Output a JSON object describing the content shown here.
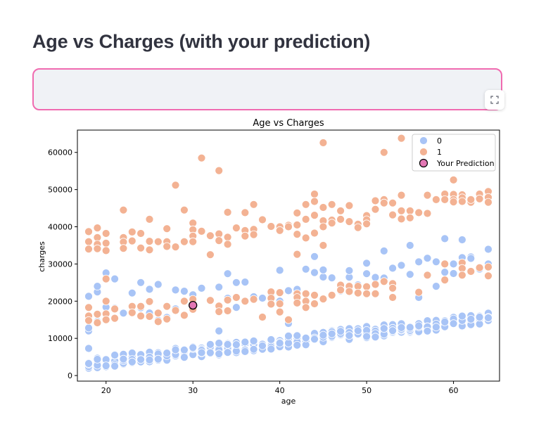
{
  "page": {
    "title": "Age vs Charges (with your prediction)"
  },
  "toolbar": {
    "fullscreen_icon": "fullscreen-icon"
  },
  "colors": {
    "smoker_0": "#a8c4f6",
    "smoker_1": "#f3b293",
    "prediction": "#e377b4",
    "frame_border": "#f06bb0"
  },
  "chart_data": {
    "type": "scatter",
    "title": "Age vs Charges",
    "xlabel": "age",
    "ylabel": "charges",
    "xlim": [
      16.7,
      65.3
    ],
    "ylim": [
      -1500,
      66000
    ],
    "xticks": [
      20,
      30,
      40,
      50,
      60
    ],
    "yticks": [
      0,
      10000,
      20000,
      30000,
      40000,
      50000,
      60000
    ],
    "grid": false,
    "legend_position": "top-right",
    "legend": [
      {
        "label": "0",
        "series": "smoker_0"
      },
      {
        "label": "1",
        "series": "smoker_1"
      },
      {
        "label": "Your Prediction",
        "series": "prediction"
      }
    ],
    "series": [
      {
        "name": "0",
        "color": "#a8c4f6",
        "bands": [
          {
            "x_start": 18,
            "x_end": 64,
            "y_start": 1600,
            "y_end": 13700,
            "spread": 3200,
            "count": 6
          },
          {
            "x_start": 18,
            "x_end": 64,
            "y_start": 11000,
            "y_end": 29000,
            "spread": 8000,
            "count": 1
          }
        ],
        "points": [
          [
            18,
            7300
          ],
          [
            18,
            12800
          ],
          [
            18,
            21300
          ],
          [
            19,
            22500
          ],
          [
            19,
            24000
          ],
          [
            20,
            27600
          ],
          [
            21,
            26000
          ],
          [
            23,
            22200
          ],
          [
            24,
            25000
          ],
          [
            25,
            23200
          ],
          [
            26,
            24500
          ],
          [
            28,
            23000
          ],
          [
            33,
            12000
          ],
          [
            34,
            27400
          ],
          [
            35,
            25000
          ],
          [
            40,
            28300
          ],
          [
            41,
            14000
          ],
          [
            44,
            32000
          ],
          [
            45,
            28400
          ],
          [
            48,
            28200
          ],
          [
            50,
            30200
          ],
          [
            52,
            33500
          ],
          [
            55,
            35000
          ],
          [
            59,
            36800
          ],
          [
            61,
            36500
          ],
          [
            62,
            31500
          ],
          [
            64,
            30000
          ],
          [
            58,
            24000
          ],
          [
            56,
            21000
          ],
          [
            60,
            30000
          ]
        ]
      },
      {
        "name": "1",
        "color": "#f3b293",
        "points": [
          [
            18,
            38700
          ],
          [
            18,
            36000
          ],
          [
            18,
            34000
          ],
          [
            18,
            18300
          ],
          [
            18,
            16000
          ],
          [
            18,
            14800
          ],
          [
            19,
            39700
          ],
          [
            19,
            37100
          ],
          [
            19,
            35300
          ],
          [
            19,
            34100
          ],
          [
            19,
            16500
          ],
          [
            19,
            14200
          ],
          [
            20,
            38200
          ],
          [
            20,
            35600
          ],
          [
            20,
            33600
          ],
          [
            20,
            26000
          ],
          [
            20,
            20000
          ],
          [
            20,
            16600
          ],
          [
            20,
            15000
          ],
          [
            21,
            17900
          ],
          [
            21,
            15400
          ],
          [
            22,
            44500
          ],
          [
            22,
            37100
          ],
          [
            22,
            35900
          ],
          [
            22,
            34200
          ],
          [
            23,
            38600
          ],
          [
            23,
            36200
          ],
          [
            23,
            18600
          ],
          [
            23,
            16900
          ],
          [
            24,
            38200
          ],
          [
            24,
            34300
          ],
          [
            24,
            18600
          ],
          [
            24,
            16000
          ],
          [
            25,
            42000
          ],
          [
            25,
            36100
          ],
          [
            25,
            33800
          ],
          [
            25,
            19900
          ],
          [
            25,
            15900
          ],
          [
            26,
            36000
          ],
          [
            26,
            16800
          ],
          [
            26,
            14500
          ],
          [
            27,
            39500
          ],
          [
            27,
            36000
          ],
          [
            27,
            34700
          ],
          [
            27,
            18600
          ],
          [
            27,
            15200
          ],
          [
            28,
            51200
          ],
          [
            28,
            34600
          ],
          [
            28,
            17500
          ],
          [
            29,
            44500
          ],
          [
            29,
            36000
          ],
          [
            29,
            20000
          ],
          [
            29,
            16200
          ],
          [
            30,
            41000
          ],
          [
            30,
            39200
          ],
          [
            30,
            37500
          ],
          [
            30,
            36000
          ],
          [
            30,
            20500
          ],
          [
            30,
            17800
          ],
          [
            31,
            58500
          ],
          [
            31,
            38800
          ],
          [
            32,
            37600
          ],
          [
            32,
            32500
          ],
          [
            32,
            20200
          ],
          [
            33,
            55100
          ],
          [
            33,
            38100
          ],
          [
            33,
            36300
          ],
          [
            33,
            18700
          ],
          [
            33,
            17200
          ],
          [
            34,
            43900
          ],
          [
            34,
            37200
          ],
          [
            34,
            35300
          ],
          [
            34,
            20300
          ],
          [
            34,
            17400
          ],
          [
            35,
            39700
          ],
          [
            35,
            21000
          ],
          [
            36,
            43800
          ],
          [
            36,
            39000
          ],
          [
            36,
            37500
          ],
          [
            36,
            20000
          ],
          [
            37,
            46000
          ],
          [
            37,
            39300
          ],
          [
            37,
            37900
          ],
          [
            37,
            20500
          ],
          [
            38,
            41900
          ],
          [
            38,
            15700
          ],
          [
            39,
            40100
          ],
          [
            39,
            22500
          ],
          [
            39,
            20800
          ],
          [
            39,
            19200
          ],
          [
            40,
            40000
          ],
          [
            40,
            39000
          ],
          [
            40,
            22300
          ],
          [
            40,
            19300
          ],
          [
            40,
            17100
          ],
          [
            41,
            40400
          ],
          [
            41,
            40000
          ],
          [
            41,
            15000
          ],
          [
            42,
            43700
          ],
          [
            42,
            40500
          ],
          [
            42,
            38000
          ],
          [
            42,
            32600
          ],
          [
            42,
            22000
          ],
          [
            42,
            21000
          ],
          [
            42,
            19500
          ],
          [
            43,
            46000
          ],
          [
            43,
            42000
          ],
          [
            43,
            37000
          ],
          [
            43,
            22000
          ],
          [
            43,
            20000
          ],
          [
            43,
            18300
          ],
          [
            44,
            48800
          ],
          [
            44,
            46800
          ],
          [
            44,
            43100
          ],
          [
            44,
            38300
          ],
          [
            44,
            21600
          ],
          [
            44,
            19300
          ],
          [
            45,
            62600
          ],
          [
            45,
            45200
          ],
          [
            45,
            41600
          ],
          [
            45,
            40000
          ],
          [
            45,
            35000
          ],
          [
            45,
            20600
          ],
          [
            46,
            46000
          ],
          [
            46,
            41800
          ],
          [
            46,
            41000
          ],
          [
            46,
            21600
          ],
          [
            47,
            44300
          ],
          [
            47,
            42000
          ],
          [
            47,
            24300
          ],
          [
            47,
            23000
          ],
          [
            48,
            45700
          ],
          [
            48,
            41400
          ],
          [
            48,
            24000
          ],
          [
            48,
            22600
          ],
          [
            49,
            40700
          ],
          [
            49,
            39800
          ],
          [
            49,
            24000
          ],
          [
            49,
            22200
          ],
          [
            50,
            43000
          ],
          [
            50,
            41900
          ],
          [
            50,
            40800
          ],
          [
            50,
            23900
          ],
          [
            50,
            22000
          ],
          [
            51,
            47000
          ],
          [
            51,
            44700
          ],
          [
            51,
            24500
          ],
          [
            51,
            22000
          ],
          [
            52,
            60000
          ],
          [
            52,
            47300
          ],
          [
            52,
            46400
          ],
          [
            52,
            25300
          ],
          [
            53,
            46400
          ],
          [
            53,
            43200
          ],
          [
            53,
            24700
          ],
          [
            53,
            23500
          ],
          [
            53,
            21000
          ],
          [
            54,
            63800
          ],
          [
            54,
            48500
          ],
          [
            54,
            44300
          ],
          [
            54,
            42100
          ],
          [
            55,
            44300
          ],
          [
            55,
            42400
          ],
          [
            56,
            43800
          ],
          [
            56,
            22400
          ],
          [
            57,
            48500
          ],
          [
            57,
            43600
          ],
          [
            57,
            27000
          ],
          [
            58,
            47300
          ],
          [
            59,
            48800
          ],
          [
            59,
            47300
          ],
          [
            59,
            30000
          ],
          [
            59,
            25700
          ],
          [
            60,
            52600
          ],
          [
            60,
            48700
          ],
          [
            60,
            47300
          ],
          [
            60,
            46700
          ],
          [
            61,
            48600
          ],
          [
            61,
            47800
          ],
          [
            61,
            46800
          ],
          [
            61,
            30300
          ],
          [
            61,
            28800
          ],
          [
            61,
            27000
          ],
          [
            62,
            46600
          ],
          [
            62,
            47300
          ],
          [
            62,
            28000
          ],
          [
            63,
            48800
          ],
          [
            63,
            47500
          ],
          [
            63,
            29000
          ],
          [
            64,
            49500
          ],
          [
            64,
            47900
          ],
          [
            64,
            46600
          ],
          [
            64,
            29200
          ],
          [
            64,
            26800
          ]
        ]
      },
      {
        "name": "Your Prediction",
        "color": "#e377b4",
        "points": [
          [
            30,
            18900
          ]
        ]
      }
    ]
  }
}
